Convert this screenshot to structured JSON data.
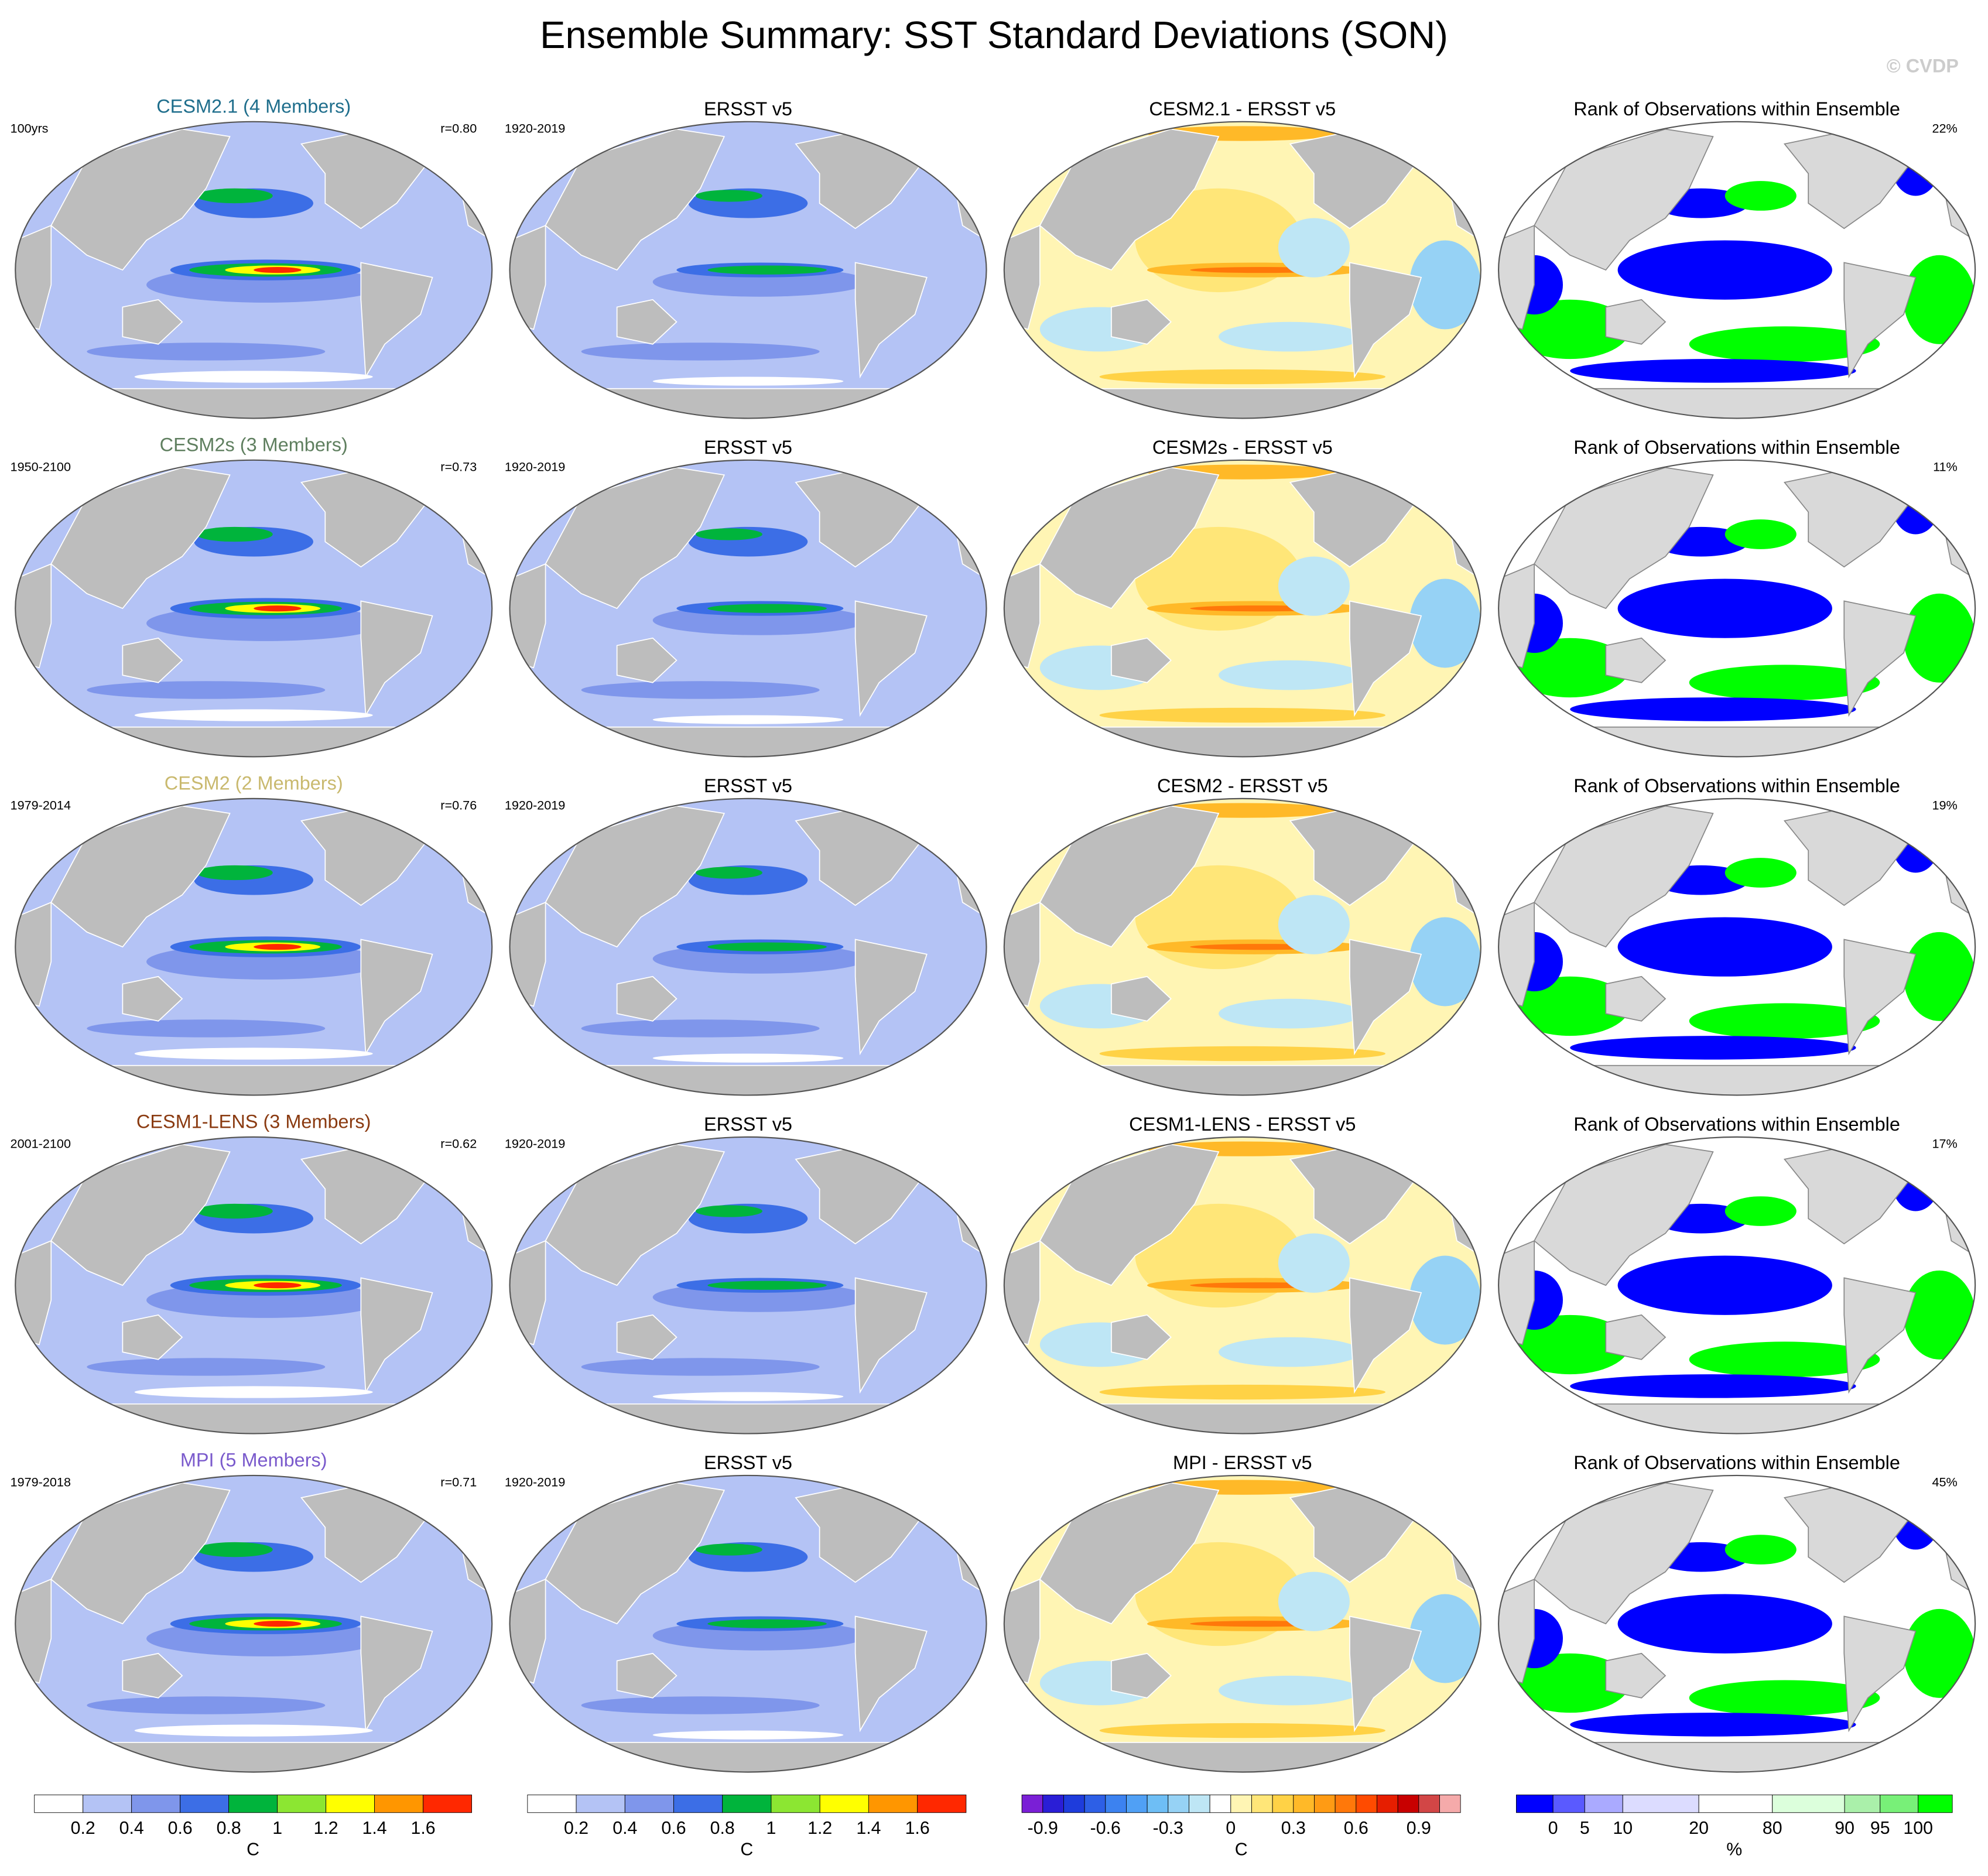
{
  "title": "Ensemble Summary: SST Standard Deviations (SON)",
  "credit": "© CVDP",
  "rows": [
    {
      "model": "CESM2.1 (4 Members)",
      "model_color": "#1f6e8c",
      "period": "100yrs",
      "r": "r=0.80",
      "obs_title": "ERSST v5",
      "obs_period": "1920-2019",
      "diff_title": "CESM2.1 - ERSST v5",
      "rank_title": "Rank of Observations within Ensemble",
      "rank_pct": "22%"
    },
    {
      "model": "CESM2s (3 Members)",
      "model_color": "#5f7f5f",
      "period": "1950-2100",
      "r": "r=0.73",
      "obs_title": "ERSST v5",
      "obs_period": "1920-2019",
      "diff_title": "CESM2s - ERSST v5",
      "rank_title": "Rank of Observations within Ensemble",
      "rank_pct": "11%"
    },
    {
      "model": "CESM2 (2 Members)",
      "model_color": "#c9b96e",
      "period": "1979-2014",
      "r": "r=0.76",
      "obs_title": "ERSST v5",
      "obs_period": "1920-2019",
      "diff_title": "CESM2 - ERSST v5",
      "rank_title": "Rank of Observations within Ensemble",
      "rank_pct": "19%"
    },
    {
      "model": "CESM1-LENS (3 Members)",
      "model_color": "#8a3a10",
      "period": "2001-2100",
      "r": "r=0.62",
      "obs_title": "ERSST v5",
      "obs_period": "1920-2019",
      "diff_title": "CESM1-LENS - ERSST v5",
      "rank_title": "Rank of Observations within Ensemble",
      "rank_pct": "17%"
    },
    {
      "model": "MPI (5 Members)",
      "model_color": "#7a5acc",
      "period": "1979-2018",
      "r": "r=0.71",
      "obs_title": "ERSST v5",
      "obs_period": "1920-2019",
      "diff_title": "MPI - ERSST v5",
      "rank_title": "Rank of Observations within Ensemble",
      "rank_pct": "45%"
    }
  ],
  "colorbars": [
    {
      "colors": [
        "#ffffff",
        "#b4c3f5",
        "#7f96eb",
        "#3c6ee6",
        "#00b43c",
        "#8ce632",
        "#ffff00",
        "#ff9600",
        "#ff2800"
      ],
      "ticks": [
        0.2,
        0.4,
        0.6,
        0.8,
        1,
        1.2,
        1.4,
        1.6
      ],
      "unit": "C"
    },
    {
      "colors": [
        "#ffffff",
        "#b4c3f5",
        "#7f96eb",
        "#3c6ee6",
        "#00b43c",
        "#8ce632",
        "#ffff00",
        "#ff9600",
        "#ff2800"
      ],
      "ticks": [
        0.2,
        0.4,
        0.6,
        0.8,
        1,
        1.2,
        1.4,
        1.6
      ],
      "unit": "C"
    },
    {
      "colors": [
        "#7a1fd6",
        "#2a1ed6",
        "#1e3cdc",
        "#2d5fe6",
        "#3c82f0",
        "#50a0f5",
        "#6ebef5",
        "#96d2f5",
        "#bee6f5",
        "#ffffff",
        "#fff5b4",
        "#ffe678",
        "#ffd246",
        "#ffb928",
        "#ff9b14",
        "#ff780a",
        "#ff4b00",
        "#e61e00",
        "#c80000",
        "#d24646",
        "#f5aaaa"
      ],
      "ticks": [
        -0.9,
        -0.6,
        -0.3,
        0,
        0.3,
        0.6,
        0.9
      ],
      "unit": "C"
    },
    {
      "colors": [
        "#0000ff",
        "#5a5aff",
        "#aaaaff",
        "#dcdcff",
        "#ffffff",
        "#dcffdc",
        "#aaf0aa",
        "#78f078",
        "#00ff00"
      ],
      "ticks": [
        0,
        5,
        10,
        20,
        80,
        90,
        95,
        100
      ],
      "unit": "%"
    }
  ]
}
